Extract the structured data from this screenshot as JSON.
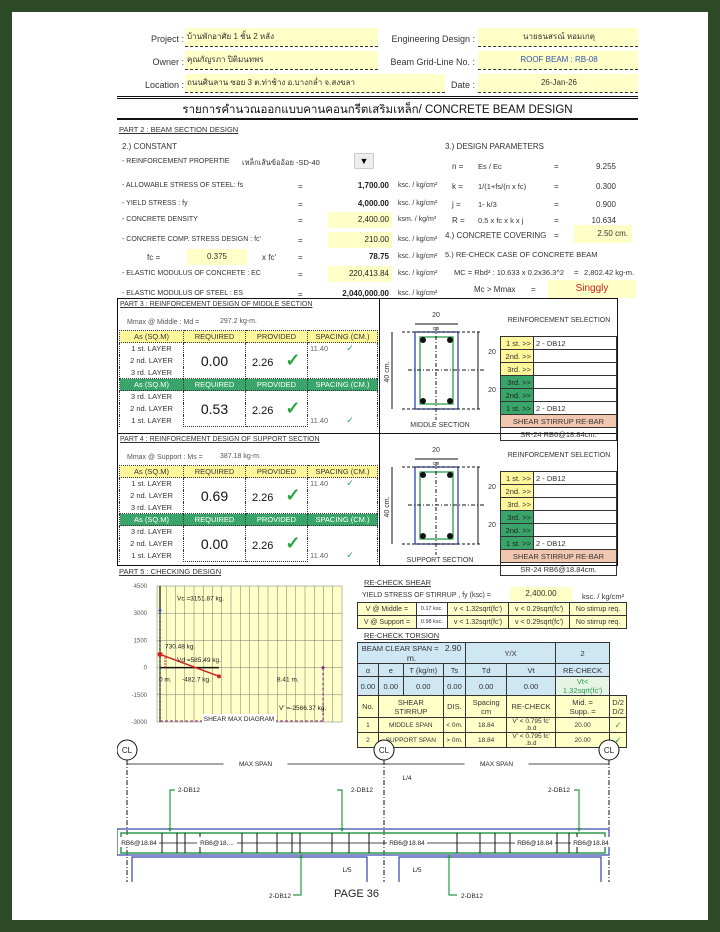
{
  "header": {
    "project_label": "Project :",
    "project": "บ้านพักอาศัย 1 ชั้น 2 หลัง",
    "owner_label": "Owner :",
    "owner": "คุณกัญรภา ปิติมนทพร",
    "location_label": "Location :",
    "location": "ถนนศินลาน ซอย 3 ต.ท่าช้าง อ.บางกล่ำ จ.สงขลา",
    "eng_label": "Engineering Design :",
    "eng": "นายธนสรณ์ หอมเกตุ",
    "grid_label": "Beam Grid-Line No. :",
    "grid": "ROOF BEAM : RB-08",
    "date_label": "Date :",
    "date": "26-Jan-26"
  },
  "title": "รายการคำนวณออกแบบคานคอนกรีตเสริมเหล็ก/ CONCRETE BEAM DESIGN",
  "part2": {
    "heading": "PART 2 : BEAM SECTION DESIGN",
    "constant": "2.) CONSTANT",
    "reinf_label": "- REINFORCEMENT PROPERTIE",
    "reinf_value": "เหล็กเส้นข้ออ้อย -SD-40",
    "rows": [
      {
        "label": "- ALLOWABLE STRESS OF STEEL: fs",
        "eq": "=",
        "value": "1,700.00",
        "unit": "ksc. / kg/cm²"
      },
      {
        "label": "- YIELD STRESS : fy",
        "eq": "=",
        "value": "4,000.00",
        "unit": "ksc. / kg/cm²"
      },
      {
        "label": "- CONCRETE DENSITY",
        "eq": "=",
        "value": "2,400.00",
        "unit": "ksm. / kg/m³"
      },
      {
        "label": "- CONCRETE COMP. STRESS DESIGN : fc'",
        "eq": "=",
        "value": "210.00",
        "unit": "ksc. / kg/cm²"
      },
      {
        "label": "fc =",
        "factor": "0.375",
        "mult": "x fc'",
        "eq": "=",
        "value": "78.75",
        "unit": "ksc. / kg/cm²"
      },
      {
        "label": "- ELASTIC MODULUS OF CONCRETE : EC",
        "eq": "=",
        "value": "220,413.84",
        "unit": "ksc. / kg/cm²"
      },
      {
        "label": "- ELASTIC MODULUS OF STEEL : ES",
        "eq": "=",
        "value": "2,040,000.00",
        "unit": "ksc. / kg/cm²"
      }
    ],
    "params_heading": "3.) DESIGN PARAMETERS",
    "params": [
      {
        "sym": "n =",
        "formula": "Es / Ec",
        "eq": "=",
        "value": "9.255"
      },
      {
        "sym": "k =",
        "formula": "1/(1+fs/(n x fc)",
        "eq": "=",
        "value": "0.300"
      },
      {
        "sym": "j =",
        "formula": "1- k/3",
        "eq": "=",
        "value": "0.900"
      },
      {
        "sym": "R =",
        "formula": "0.5 x fc x k x j",
        "eq": "=",
        "value": "10.634"
      }
    ],
    "covering_label": "4.) CONCRETE COVERING",
    "covering_eq": "=",
    "covering": "2.50 cm.",
    "recheck_heading": "5.) RE-CHECK CASE OF CONCRETE BEAM",
    "mc_formula": "MC = Rbd² : 10.633 x 0.2x36.3^2",
    "mc_eq": "=",
    "mc_value": "2,802.42 kg-m.",
    "mc_cmp": "Mc > Mmax",
    "mc_cmp_eq": "=",
    "mc_result": "Singgly"
  },
  "part3": {
    "heading": "PART 3 : REINFORCEMENT DESIGN OF MIDDLE SECTION",
    "mmax": "Mmax @ Middle : Md =",
    "mmax_value": "297.2 kg-m.",
    "cols": [
      "As (SQ.M)",
      "REQUIRED",
      "PROVIDED",
      "SPACING (CM.)"
    ],
    "top": {
      "layers": [
        "1 st. LAYER",
        "2 nd. LAYER",
        "3 rd. LAYER"
      ],
      "required": "0.00",
      "provided": "2.26",
      "spacing": "11.40"
    },
    "bottom": {
      "layers": [
        "3 rd. LAYER",
        "2 nd. LAYER",
        "1 st. LAYER"
      ],
      "required": "0.53",
      "provided": "2.26",
      "spacing": "11.40"
    },
    "section_label": "MIDDLE SECTION"
  },
  "part4": {
    "heading": "PART 4 : REINFORCEMENT DESIGN OF SUPPORT SECTION",
    "mmax": "Mmax @ Support : Ms =",
    "mmax_value": "387.18 kg-m.",
    "cols": [
      "As (SQ.M)",
      "REQUIRED",
      "PROVIDED",
      "SPACING (CM.)"
    ],
    "top": {
      "layers": [
        "1 st. LAYER",
        "2 nd. LAYER",
        "3 rd. LAYER"
      ],
      "required": "0.69",
      "provided": "2.26",
      "spacing": "11.40"
    },
    "bottom": {
      "layers": [
        "3 rd. LAYER",
        "2 nd. LAYER",
        "1 st. LAYER"
      ],
      "required": "0.00",
      "provided": "2.26",
      "spacing": "11.40"
    },
    "section_label": "SUPPORT SECTION"
  },
  "section": {
    "width": "20",
    "width_unit": "cm",
    "height": "40 cm.",
    "half_top": "20",
    "half_bot": "20"
  },
  "selection": {
    "heading": "REINFORCEMENT SELECTION",
    "middle": [
      [
        "1 st. >>",
        "2 - DB12"
      ],
      [
        "2nd. >>",
        ""
      ],
      [
        "3rd. >>",
        ""
      ],
      [
        "3rd. >>",
        ""
      ],
      [
        "2nd. >>",
        ""
      ],
      [
        "1 st. >>",
        "2 - DB12"
      ]
    ],
    "support": [
      [
        "1 st. >>",
        "2 - DB12"
      ],
      [
        "2nd. >>",
        ""
      ],
      [
        "3rd. >>",
        ""
      ],
      [
        "3rd. >>",
        ""
      ],
      [
        "2nd. >>",
        ""
      ],
      [
        "1 st. >>",
        "2 - DB12"
      ]
    ],
    "stirrup_head": "SHEAR STIRRUP RE-BAR",
    "middle_stirrup": "SR-24 RB6@18.84cm.",
    "support_stirrup": "SR-24 RB6@18.84cm."
  },
  "part5": {
    "heading": "PART 5 : CHECKING DESIGN"
  },
  "shear_diagram": {
    "title": "SHEAR MAX DIAGRAM",
    "y_ticks": [
      "4500",
      "3000",
      "1500",
      "0",
      "-1500",
      "-3000"
    ],
    "ylim": [
      -3000,
      4500
    ],
    "labels": {
      "vc": "Vc =3151.87 kg.",
      "v1": "730.48 kg.",
      "v2": "Vd =585.49 kg.",
      "v3": "-482.7 kg.",
      "x0": "0 m.",
      "x1": "8.41 m.",
      "vp": "V' =-2566.37 kg."
    }
  },
  "shear": {
    "heading": "RE-CHECK SHEAR",
    "fy_label": "YIELD STRESS OF STIRRUP , fy (ksc) =",
    "fy": "2,400.00",
    "fy_unit": "ksc. / kg/cm²",
    "rows": [
      [
        "V @ Middle =",
        "0.17 ksc.",
        "v < 1.32sqrt(fc')",
        "v < 0.29sqrt(fc')",
        "No stirrup req."
      ],
      [
        "V @ Support =",
        "0.98 ksc.",
        "v < 1.32sqrt(fc')",
        "v < 0.29sqrt(fc')",
        "No stirrup req."
      ]
    ]
  },
  "torsion": {
    "heading": "RE-CHECK TORSION",
    "span_label": "BEAM CLEAR SPAN =",
    "span": "2.90 m.",
    "yx_label": "Y/X",
    "yx": "2",
    "cols": [
      "α",
      "e",
      "T (kg/m)",
      "Ts",
      "Td",
      "Vt",
      "RE-CHECK"
    ],
    "vals": [
      "0.00",
      "0.00",
      "0.00",
      "0.00",
      "0.00",
      "0.00",
      "Vt< 1.32sqrt(fc')"
    ],
    "st_cols": [
      "No.",
      "SHEAR STIRRUP",
      "DIS.",
      "Spacing cm",
      "RE-CHECK",
      "Mid. =",
      "D/2",
      "Supp. =",
      "D/2"
    ],
    "st_rows": [
      [
        "1",
        "MIDDLE SPAN",
        "< 0m.",
        "18.84",
        "V' < 0.795 fc' .b.d",
        "20.00"
      ],
      [
        "2",
        "SUPPORT SPAN",
        "> 0m.",
        "18.84",
        "V' < 0.795 fc' .b.d",
        "20.00"
      ]
    ]
  },
  "beam": {
    "cl": "CL",
    "max_span": "MAX SPAN",
    "l4": "L/4",
    "l5": "L/5",
    "bar": "2-DB12",
    "stirrup": "RB6@18.84",
    "stirrup_short": "RB6@18...."
  },
  "footer": {
    "page": "PAGE 36"
  },
  "colors": {
    "frame": "#2d4a26",
    "highlight": "#ffffc8",
    "green_header": "#3aa56a",
    "yellow_header": "#fff79a",
    "stirrup": "#f2c7b0",
    "blue": "#cfe6f3",
    "check": "#27a844",
    "singly": "#cc2222"
  }
}
